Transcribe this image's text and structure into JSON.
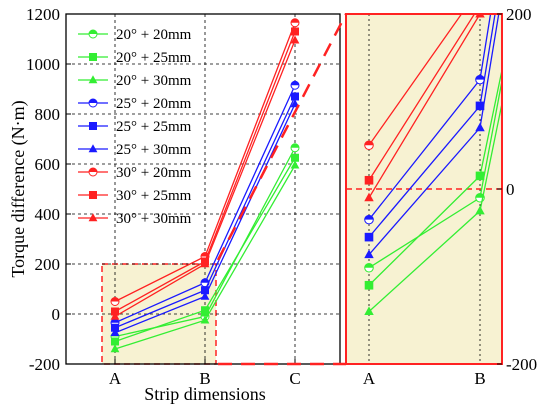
{
  "chart_data": [
    {
      "type": "line",
      "title": "",
      "xlabel": "Strip dimensions",
      "ylabel": "Torque difference (N·m)",
      "categories": [
        "A",
        "B",
        "C"
      ],
      "ylim": [
        -200,
        1200
      ],
      "yticks": [
        "-200",
        "0",
        "200",
        "400",
        "600",
        "800",
        "1000",
        "1200"
      ],
      "grid": true,
      "legend_position": "top-left",
      "series": [
        {
          "name": "20° + 20mm",
          "color": "#33ee33",
          "marker": "circle-half",
          "values": [
            -90,
            -10,
            665
          ]
        },
        {
          "name": "20° + 25mm",
          "color": "#33ee33",
          "marker": "square",
          "values": [
            -110,
            15,
            625
          ]
        },
        {
          "name": "20° + 30mm",
          "color": "#33ee33",
          "marker": "triangle",
          "values": [
            -140,
            -25,
            595
          ]
        },
        {
          "name": "25° + 20mm",
          "color": "#1a1aff",
          "marker": "circle-half",
          "values": [
            -35,
            125,
            915
          ]
        },
        {
          "name": "25° + 25mm",
          "color": "#1a1aff",
          "marker": "square",
          "values": [
            -55,
            95,
            870
          ]
        },
        {
          "name": "25° + 30mm",
          "color": "#1a1aff",
          "marker": "triangle",
          "values": [
            -75,
            70,
            840
          ]
        },
        {
          "name": "30° + 20mm",
          "color": "#ff2222",
          "marker": "circle-half",
          "values": [
            50,
            230,
            1165
          ]
        },
        {
          "name": "30° + 25mm",
          "color": "#ff2222",
          "marker": "square",
          "values": [
            10,
            210,
            1130
          ]
        },
        {
          "name": "30° + 30mm",
          "color": "#ff2222",
          "marker": "triangle",
          "values": [
            -10,
            200,
            1095
          ]
        }
      ]
    },
    {
      "type": "line",
      "title": "",
      "categories": [
        "A",
        "B"
      ],
      "ylim": [
        -200,
        200
      ],
      "yticks_right": [
        "200",
        "0",
        "-200"
      ],
      "grid": true,
      "note": "zoomed inset of the A–B range"
    }
  ],
  "colors": {
    "inset_frame": "#ff2222",
    "zoom_region_fill": "#f7f2d2"
  }
}
